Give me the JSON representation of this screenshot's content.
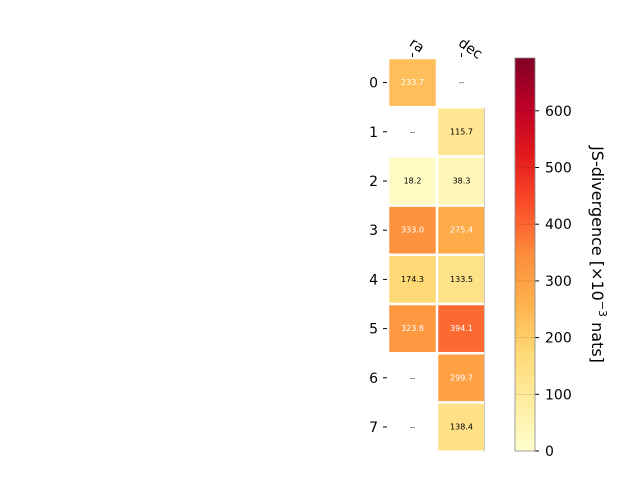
{
  "chart_data": {
    "type": "heatmap",
    "columns": [
      "ra",
      "dec"
    ],
    "rows": [
      "0",
      "1",
      "2",
      "3",
      "4",
      "5",
      "6",
      "7"
    ],
    "values": [
      [
        233.7,
        null
      ],
      [
        null,
        115.7
      ],
      [
        18.2,
        38.3
      ],
      [
        333.0,
        275.4
      ],
      [
        174.3,
        133.5
      ],
      [
        323.8,
        394.1
      ],
      [
        null,
        299.7
      ],
      [
        null,
        138.4
      ]
    ],
    "cell_labels": [
      [
        "233.7",
        "--"
      ],
      [
        "--",
        "115.7"
      ],
      [
        "18.2",
        "38.3"
      ],
      [
        "333.0",
        "275.4"
      ],
      [
        "174.3",
        "133.5"
      ],
      [
        "323.8",
        "394.1"
      ],
      [
        "--",
        "299.7"
      ],
      [
        "--",
        "138.4"
      ]
    ],
    "colorbar": {
      "label": "JS-divergence [×10⁻³ nats]",
      "label_base": "JS-divergence [×10",
      "label_exp": "−3",
      "label_tail": " nats]",
      "min": 0,
      "max": 693.1,
      "ticks": [
        0,
        100,
        200,
        300,
        400,
        500,
        600
      ],
      "colormap": "YlOrRd"
    },
    "colors": {
      "low": "#ffffcc",
      "mid": "#fd8d3c",
      "high": "#800026"
    }
  }
}
